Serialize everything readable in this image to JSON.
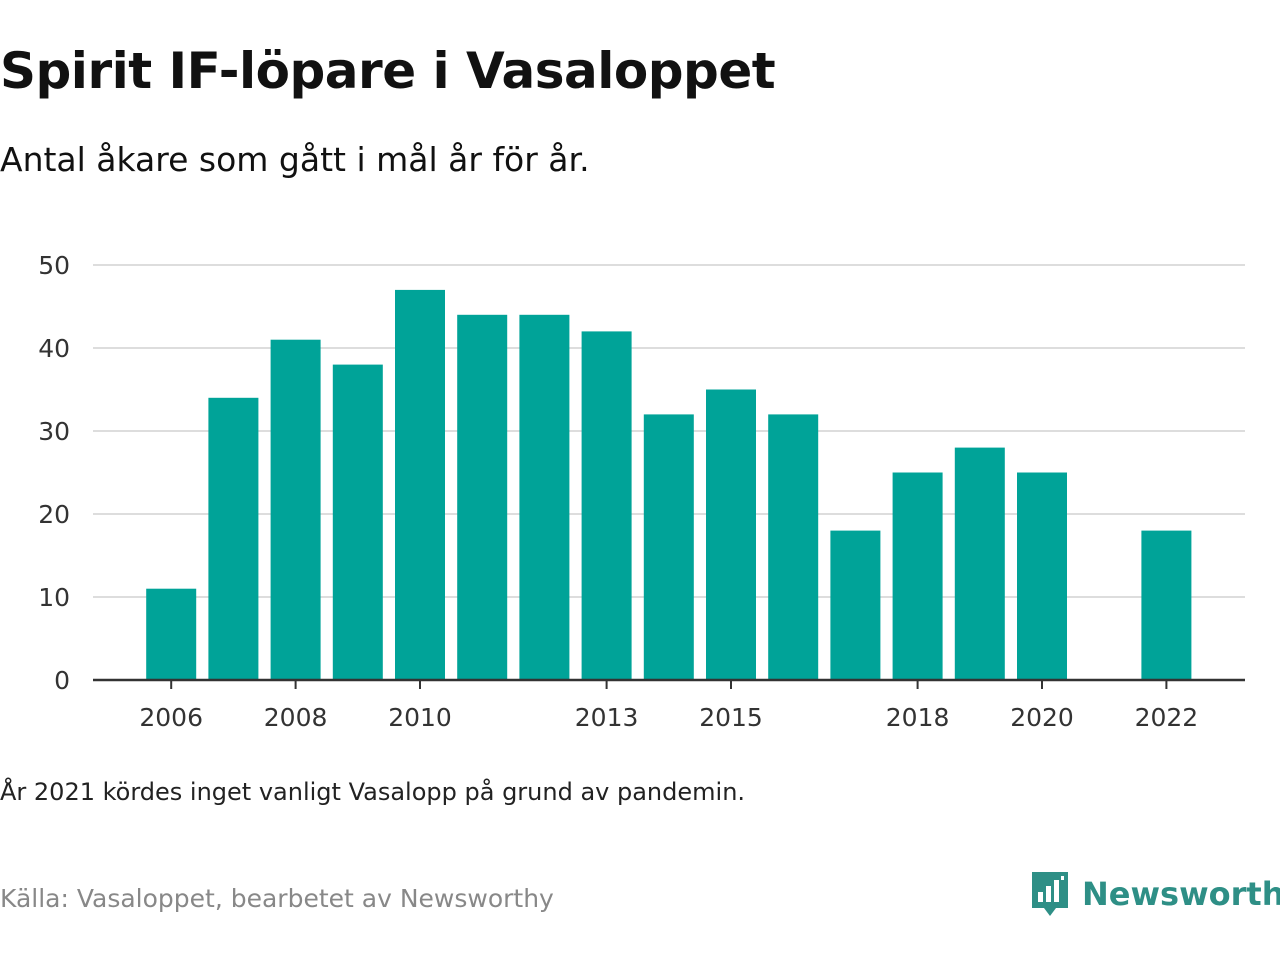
{
  "title": "Spirit IF-löpare i Vasaloppet",
  "subtitle": "Antal åkare som gått i mål år för år.",
  "note": "År 2021 kördes inget vanligt Vasalopp på grund av pandemin.",
  "source": "Källa: Vasaloppet, bearbetet av Newsworthy",
  "brand": {
    "name": "Newsworthy",
    "icon": "newsworthy-logo-icon",
    "color": "#2e8f86"
  },
  "colors": {
    "bar": "#00a398",
    "grid": "#dddddd",
    "axis": "#333333",
    "text": "#111111"
  },
  "chart_data": {
    "type": "bar",
    "title": "Spirit IF-löpare i Vasaloppet",
    "subtitle": "Antal åkare som gått i mål år för år.",
    "xlabel": "",
    "ylabel": "",
    "x": [
      2006,
      2007,
      2008,
      2009,
      2010,
      2011,
      2012,
      2013,
      2014,
      2015,
      2016,
      2017,
      2018,
      2019,
      2020,
      2022
    ],
    "values": [
      11,
      34,
      41,
      38,
      47,
      44,
      44,
      42,
      32,
      35,
      32,
      18,
      25,
      28,
      25,
      18
    ],
    "xticks": [
      "2006",
      "2008",
      "2010",
      "2013",
      "2015",
      "2018",
      "2020",
      "2022"
    ],
    "yticks": [
      "0",
      "10",
      "20",
      "30",
      "40",
      "50"
    ],
    "ylim": [
      0,
      50
    ],
    "xlim": [
      2005,
      2023
    ],
    "grid": true,
    "legend": "none"
  }
}
